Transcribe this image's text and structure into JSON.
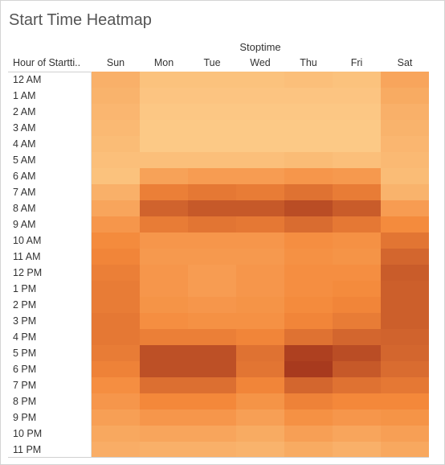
{
  "header": {
    "title": "Start Time Heatmap"
  },
  "chart_data": {
    "type": "heatmap",
    "title": "Start Time Heatmap",
    "column_group_label": "Stoptime",
    "row_header": "Hour of Startti..",
    "columns": [
      "Sun",
      "Mon",
      "Tue",
      "Wed",
      "Thu",
      "Fri",
      "Sat"
    ],
    "rows": [
      "12 AM",
      "1 AM",
      "2 AM",
      "3 AM",
      "4 AM",
      "5 AM",
      "6 AM",
      "7 AM",
      "8 AM",
      "9 AM",
      "10 AM",
      "11 AM",
      "12 PM",
      "1 PM",
      "2 PM",
      "3 PM",
      "4 PM",
      "5 PM",
      "6 PM",
      "7 PM",
      "8 PM",
      "9 PM",
      "10 PM",
      "11 PM"
    ],
    "values": [
      [
        0.22,
        0.1,
        0.1,
        0.1,
        0.12,
        0.1,
        0.3
      ],
      [
        0.2,
        0.08,
        0.08,
        0.08,
        0.08,
        0.08,
        0.26
      ],
      [
        0.18,
        0.06,
        0.06,
        0.06,
        0.06,
        0.06,
        0.22
      ],
      [
        0.16,
        0.05,
        0.05,
        0.05,
        0.05,
        0.05,
        0.2
      ],
      [
        0.14,
        0.05,
        0.05,
        0.05,
        0.05,
        0.05,
        0.18
      ],
      [
        0.12,
        0.12,
        0.12,
        0.12,
        0.14,
        0.12,
        0.16
      ],
      [
        0.1,
        0.32,
        0.36,
        0.36,
        0.4,
        0.38,
        0.14
      ],
      [
        0.22,
        0.56,
        0.6,
        0.58,
        0.64,
        0.58,
        0.2
      ],
      [
        0.3,
        0.74,
        0.8,
        0.8,
        0.88,
        0.78,
        0.36
      ],
      [
        0.4,
        0.58,
        0.62,
        0.6,
        0.68,
        0.6,
        0.48
      ],
      [
        0.48,
        0.4,
        0.4,
        0.4,
        0.46,
        0.44,
        0.62
      ],
      [
        0.52,
        0.38,
        0.38,
        0.38,
        0.44,
        0.42,
        0.72
      ],
      [
        0.56,
        0.4,
        0.36,
        0.4,
        0.46,
        0.46,
        0.78
      ],
      [
        0.58,
        0.4,
        0.36,
        0.4,
        0.46,
        0.48,
        0.76
      ],
      [
        0.58,
        0.42,
        0.4,
        0.42,
        0.48,
        0.52,
        0.76
      ],
      [
        0.6,
        0.46,
        0.44,
        0.44,
        0.52,
        0.58,
        0.76
      ],
      [
        0.6,
        0.56,
        0.56,
        0.52,
        0.64,
        0.72,
        0.74
      ],
      [
        0.58,
        0.86,
        0.86,
        0.64,
        0.96,
        0.88,
        0.72
      ],
      [
        0.54,
        0.86,
        0.86,
        0.62,
        1.0,
        0.8,
        0.68
      ],
      [
        0.46,
        0.66,
        0.66,
        0.52,
        0.72,
        0.64,
        0.6
      ],
      [
        0.4,
        0.5,
        0.5,
        0.42,
        0.54,
        0.5,
        0.5
      ],
      [
        0.34,
        0.4,
        0.4,
        0.34,
        0.44,
        0.4,
        0.42
      ],
      [
        0.28,
        0.3,
        0.3,
        0.26,
        0.34,
        0.3,
        0.34
      ],
      [
        0.24,
        0.22,
        0.22,
        0.2,
        0.26,
        0.22,
        0.28
      ]
    ],
    "value_scale": [
      0,
      1
    ],
    "colors": {
      "low": "#fdd08e",
      "mid": "#f4883a",
      "high": "#a83a1e"
    },
    "legend": "none",
    "grid": false
  }
}
